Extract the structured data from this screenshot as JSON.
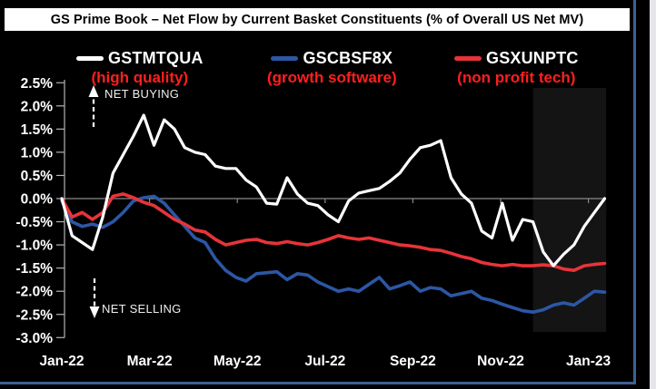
{
  "chart_data": {
    "type": "line",
    "title": "GS Prime Book – Net Flow by Current Basket Constituents (% of Overall US Net MV)",
    "x_range": "Jan-2022 to mid-Jan-2023",
    "sampling": "weekly",
    "x_tick_labels": [
      "Jan-22",
      "Mar-22",
      "May-22",
      "Jul-22",
      "Sep-22",
      "Nov-22",
      "Jan-23"
    ],
    "y_tick_labels": [
      "2.5%",
      "2.0%",
      "1.5%",
      "1.0%",
      "0.5%",
      "0.0%",
      "-0.5%",
      "-1.0%",
      "-1.5%",
      "-2.0%",
      "-2.5%",
      "-3.0%"
    ],
    "ylim": [
      -3.0,
      2.5
    ],
    "y_unit": "percent of overall US net MV",
    "grid": "zero-line only",
    "background": "#000000",
    "annotations": {
      "net_buying": "NET BUYING",
      "net_selling": "NET SELLING"
    },
    "legend": [
      {
        "ticker": "GSTMTQUA",
        "subtitle": "(high quality)",
        "color": "#ffffff"
      },
      {
        "ticker": "GSCBSF8X",
        "subtitle": "(growth software)",
        "color": "#2c57a5"
      },
      {
        "ticker": "GSXUNPTC",
        "subtitle": "(non profit tech)",
        "color": "#e73439"
      }
    ],
    "highlight_band": {
      "start_week": 46,
      "end_week": 53.15
    },
    "series": [
      {
        "name": "GSTMTQUA (high quality)",
        "color": "#ffffff",
        "values": [
          0,
          -0.8,
          -0.95,
          -1.1,
          -0.4,
          0.55,
          0.95,
          1.35,
          1.8,
          1.15,
          1.7,
          1.5,
          1.1,
          1.0,
          0.95,
          0.7,
          0.65,
          0.65,
          0.4,
          0.25,
          -0.1,
          -0.12,
          0.45,
          0.1,
          -0.1,
          -0.15,
          -0.35,
          -0.5,
          -0.05,
          0.12,
          0.17,
          0.22,
          0.37,
          0.55,
          0.85,
          1.1,
          1.15,
          1.25,
          0.45,
          0.1,
          -0.1,
          -0.7,
          -0.85,
          -0.1,
          -0.9,
          -0.45,
          -0.5,
          -1.15,
          -1.45,
          -1.2,
          -1.0,
          -0.6,
          -0.3,
          0.0
        ]
      },
      {
        "name": "GSCBSF8X (growth software)",
        "color": "#2c57a5",
        "values": [
          -0.05,
          -0.5,
          -0.6,
          -0.55,
          -0.62,
          -0.5,
          -0.3,
          -0.05,
          0.02,
          0.05,
          -0.1,
          -0.35,
          -0.6,
          -0.85,
          -0.95,
          -1.3,
          -1.55,
          -1.7,
          -1.78,
          -1.62,
          -1.6,
          -1.58,
          -1.75,
          -1.62,
          -1.65,
          -1.8,
          -1.9,
          -2.0,
          -1.95,
          -2.0,
          -1.85,
          -1.7,
          -1.95,
          -1.88,
          -1.8,
          -2.0,
          -1.92,
          -1.95,
          -2.1,
          -2.05,
          -2.0,
          -2.15,
          -2.2,
          -2.28,
          -2.35,
          -2.42,
          -2.45,
          -2.4,
          -2.3,
          -2.25,
          -2.3,
          -2.15,
          -2.0,
          -2.02
        ]
      },
      {
        "name": "GSXUNPTC (non profit tech)",
        "color": "#e73439",
        "values": [
          0,
          -0.4,
          -0.3,
          -0.45,
          -0.3,
          0.05,
          0.1,
          0.02,
          -0.08,
          -0.15,
          -0.3,
          -0.45,
          -0.55,
          -0.68,
          -0.72,
          -0.88,
          -1.0,
          -0.95,
          -0.9,
          -0.88,
          -0.95,
          -0.97,
          -0.93,
          -0.97,
          -1.0,
          -0.95,
          -0.88,
          -0.8,
          -0.85,
          -0.88,
          -0.85,
          -0.9,
          -0.95,
          -1.0,
          -1.02,
          -1.05,
          -1.1,
          -1.12,
          -1.18,
          -1.25,
          -1.3,
          -1.38,
          -1.42,
          -1.45,
          -1.42,
          -1.45,
          -1.45,
          -1.43,
          -1.45,
          -1.52,
          -1.55,
          -1.45,
          -1.42,
          -1.4
        ]
      }
    ]
  }
}
